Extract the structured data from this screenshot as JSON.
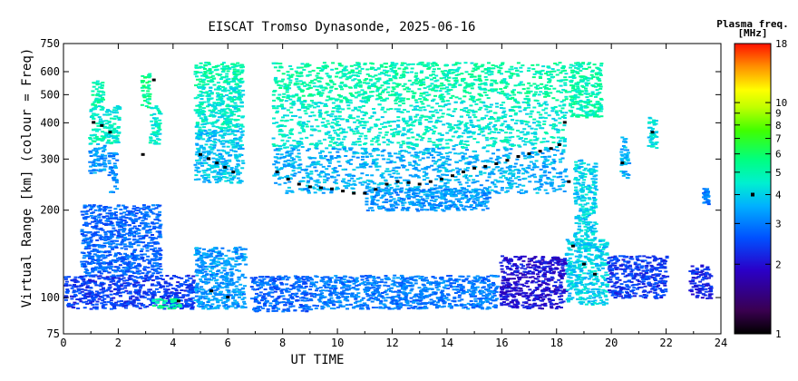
{
  "chart_data": {
    "type": "scatter",
    "title": "EISCAT Tromso Dynasonde, 2025-06-16",
    "xlabel": "UT TIME",
    "ylabel": "Virtual Range [km] (colour = Freq)",
    "x_ticks": [
      "0",
      "2",
      "4",
      "6",
      "8",
      "10",
      "12",
      "14",
      "16",
      "18",
      "20",
      "22",
      "24"
    ],
    "xlim": [
      0,
      24
    ],
    "y_scale": "log",
    "ylim": [
      75,
      750
    ],
    "y_ticks": [
      75,
      100,
      200,
      300,
      400,
      500,
      600,
      750
    ],
    "y_tick_labels": [
      "75",
      "100",
      "200",
      "300",
      "400",
      "500",
      "600",
      "750"
    ],
    "colorbar": {
      "title_line1": "Plasma freq.",
      "title_line2": "[MHz]",
      "scale": "log",
      "range": [
        1,
        18
      ],
      "ticks": [
        1,
        2,
        3,
        4,
        5,
        6,
        7,
        8,
        9,
        10,
        18
      ],
      "tick_labels": [
        "1",
        "2",
        "3",
        "4",
        "5",
        "6",
        "7",
        "8",
        "9",
        "10",
        "18"
      ],
      "marker_value": 4
    },
    "series": [
      {
        "role": "F-region echo bands",
        "color_note": "colour = plasma frequency",
        "segments": [
          {
            "x0": 0.9,
            "x1": 1.5,
            "r0": 270,
            "r1": 340,
            "f": 3.3
          },
          {
            "x0": 0.9,
            "x1": 2.0,
            "r0": 340,
            "r1": 460,
            "f": 4.6
          },
          {
            "x0": 1.0,
            "x1": 1.4,
            "r0": 460,
            "r1": 560,
            "f": 5.0
          },
          {
            "x0": 1.6,
            "x1": 1.9,
            "r0": 230,
            "r1": 320,
            "f": 3.2
          },
          {
            "x0": 2.8,
            "x1": 3.1,
            "r0": 450,
            "r1": 600,
            "f": 5.5
          },
          {
            "x0": 3.1,
            "x1": 3.5,
            "r0": 340,
            "r1": 460,
            "f": 4.5
          },
          {
            "x0": 4.75,
            "x1": 6.5,
            "r0": 540,
            "r1": 650,
            "f": 5.0
          },
          {
            "x0": 4.75,
            "x1": 6.5,
            "r0": 380,
            "r1": 540,
            "f": 4.5
          },
          {
            "x0": 4.75,
            "x1": 6.5,
            "r0": 250,
            "r1": 380,
            "f": 3.8
          },
          {
            "x0": 7.6,
            "x1": 18.3,
            "r0": 480,
            "r1": 650,
            "f": 5.0
          },
          {
            "x0": 7.6,
            "x1": 18.3,
            "r0": 330,
            "r1": 480,
            "f": 4.5
          },
          {
            "x0": 7.6,
            "x1": 18.3,
            "r0": 230,
            "r1": 330,
            "f": 3.6
          },
          {
            "x0": 11.0,
            "x1": 15.5,
            "r0": 200,
            "r1": 240,
            "f": 3.3
          },
          {
            "x0": 18.4,
            "x1": 19.6,
            "r0": 420,
            "r1": 650,
            "f": 5.0
          },
          {
            "x0": 18.6,
            "x1": 19.4,
            "r0": 150,
            "r1": 300,
            "f": 4.0
          },
          {
            "x0": 20.3,
            "x1": 20.6,
            "r0": 260,
            "r1": 360,
            "f": 3.6
          },
          {
            "x0": 21.3,
            "x1": 21.6,
            "r0": 330,
            "r1": 420,
            "f": 4.2
          },
          {
            "x0": 23.3,
            "x1": 23.5,
            "r0": 210,
            "r1": 240,
            "f": 3.0
          }
        ]
      },
      {
        "role": "E-region / low echo bands",
        "segments": [
          {
            "x0": 0.0,
            "x1": 4.7,
            "r0": 92,
            "r1": 120,
            "f": 2.4
          },
          {
            "x0": 0.6,
            "x1": 3.5,
            "r0": 120,
            "r1": 210,
            "f": 2.8
          },
          {
            "x0": 3.2,
            "x1": 4.2,
            "r0": 92,
            "r1": 100,
            "f": 5.2
          },
          {
            "x0": 4.75,
            "x1": 6.6,
            "r0": 92,
            "r1": 150,
            "f": 3.3
          },
          {
            "x0": 6.8,
            "x1": 9.0,
            "r0": 90,
            "r1": 120,
            "f": 2.8
          },
          {
            "x0": 9.0,
            "x1": 15.8,
            "r0": 92,
            "r1": 120,
            "f": 3.0
          },
          {
            "x0": 15.9,
            "x1": 18.3,
            "r0": 92,
            "r1": 140,
            "f": 2.0
          },
          {
            "x0": 18.3,
            "x1": 19.8,
            "r0": 95,
            "r1": 160,
            "f": 4.0
          },
          {
            "x0": 19.8,
            "x1": 22.0,
            "r0": 100,
            "r1": 140,
            "f": 2.4
          },
          {
            "x0": 22.8,
            "x1": 23.6,
            "r0": 100,
            "r1": 130,
            "f": 2.2
          }
        ]
      },
      {
        "role": "black trace points",
        "points": [
          [
            1.1,
            400
          ],
          [
            1.4,
            390
          ],
          [
            1.7,
            370
          ],
          [
            2.9,
            310
          ],
          [
            3.3,
            560
          ],
          [
            5.0,
            310
          ],
          [
            5.3,
            300
          ],
          [
            5.6,
            290
          ],
          [
            5.9,
            280
          ],
          [
            6.2,
            270
          ],
          [
            7.8,
            270
          ],
          [
            8.2,
            255
          ],
          [
            8.6,
            245
          ],
          [
            9.0,
            240
          ],
          [
            9.4,
            238
          ],
          [
            9.8,
            236
          ],
          [
            10.2,
            232
          ],
          [
            10.6,
            228
          ],
          [
            11.0,
            228
          ],
          [
            11.4,
            235
          ],
          [
            11.8,
            245
          ],
          [
            12.2,
            250
          ],
          [
            12.6,
            248
          ],
          [
            13.0,
            245
          ],
          [
            13.4,
            250
          ],
          [
            13.8,
            255
          ],
          [
            14.2,
            262
          ],
          [
            14.6,
            270
          ],
          [
            15.0,
            278
          ],
          [
            15.4,
            282
          ],
          [
            15.8,
            288
          ],
          [
            16.2,
            296
          ],
          [
            16.6,
            305
          ],
          [
            17.0,
            312
          ],
          [
            17.4,
            318
          ],
          [
            17.8,
            325
          ],
          [
            18.1,
            335
          ],
          [
            18.3,
            400
          ],
          [
            18.45,
            250
          ],
          [
            18.6,
            150
          ],
          [
            19.0,
            130
          ],
          [
            19.4,
            120
          ],
          [
            20.4,
            290
          ],
          [
            21.5,
            370
          ],
          [
            4.2,
            97
          ],
          [
            5.4,
            105
          ],
          [
            6.0,
            100
          ]
        ]
      }
    ],
    "grid": false
  }
}
